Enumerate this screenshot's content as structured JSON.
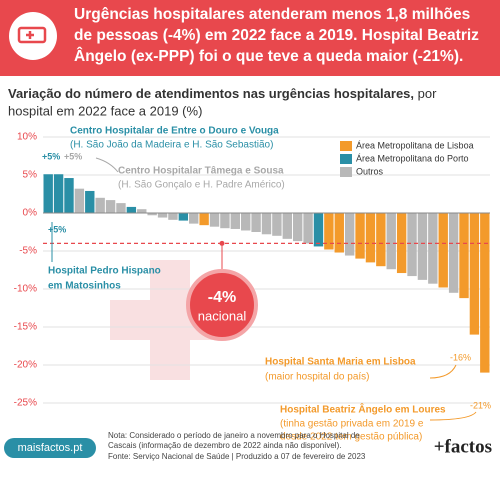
{
  "header": {
    "title_lines": [
      "Urgências hospitalares atenderam menos 1,8 milhões",
      "de pessoas (-4%) em 2022 face a 2019. Hospital Beatriz",
      "Ângelo (ex-PPP) foi o que teve a queda maior (-21%)."
    ]
  },
  "chart_data": {
    "type": "bar",
    "title": "Variação do número de atendimentos nas urgências hospitalares,",
    "title_rest": "por",
    "subtitle": "hospital em 2022 face a 2019 (%)",
    "categories": [
      null,
      null,
      null,
      null,
      null,
      null,
      null,
      null,
      null,
      null,
      null,
      null,
      null,
      null,
      null,
      null,
      null,
      null,
      null,
      null,
      null,
      null,
      null,
      null,
      null,
      null,
      null,
      null,
      null,
      null,
      null,
      null,
      null,
      null,
      null,
      null,
      null,
      null,
      null,
      null,
      null,
      null,
      null
    ],
    "series": [
      {
        "name": "Área Metropolitana de Lisboa",
        "color": "#f39a2b",
        "values": [
          null,
          null,
          null,
          null,
          null,
          null,
          null,
          null,
          null,
          null,
          null,
          null,
          null,
          null,
          null,
          -1.6,
          null,
          null,
          null,
          null,
          null,
          null,
          null,
          null,
          null,
          null,
          null,
          -4.8,
          -5.2,
          null,
          -6.0,
          -6.5,
          -7.0,
          null,
          -7.9,
          null,
          null,
          null,
          -9.8,
          null,
          -11.2,
          -16,
          -21
        ]
      },
      {
        "name": "Área Metropolitana do Porto",
        "color": "#2a8fa6",
        "values": [
          5.1,
          5.1,
          4.6,
          null,
          2.9,
          null,
          null,
          null,
          0.8,
          null,
          null,
          null,
          null,
          -1.0,
          null,
          null,
          null,
          null,
          null,
          null,
          null,
          null,
          null,
          null,
          null,
          null,
          -4.4,
          null,
          null,
          null,
          null,
          null,
          null,
          null,
          null,
          null,
          null,
          null,
          null,
          null,
          null,
          null,
          null
        ]
      },
      {
        "name": "Outros",
        "color": "#b8b8b8",
        "values": [
          null,
          null,
          null,
          3.2,
          null,
          2.0,
          1.7,
          1.3,
          null,
          0.5,
          -0.3,
          -0.6,
          -0.9,
          null,
          -1.4,
          null,
          -1.8,
          -2.0,
          -2.1,
          -2.3,
          -2.5,
          -2.8,
          -3.0,
          -3.4,
          -3.7,
          -4.0,
          null,
          null,
          null,
          -5.6,
          null,
          null,
          null,
          -7.4,
          null,
          -8.3,
          -8.8,
          -9.3,
          null,
          -10.5,
          null,
          null,
          null
        ]
      }
    ],
    "ylim": [
      -25,
      10
    ],
    "yticks": [
      {
        "value": 10,
        "label": "10%"
      },
      {
        "value": 5,
        "label": "5%"
      },
      {
        "value": 0,
        "label": "0%"
      },
      {
        "value": -5,
        "label": "-5%"
      },
      {
        "value": -10,
        "label": "-10%"
      },
      {
        "value": -15,
        "label": "-15%"
      },
      {
        "value": -20,
        "label": "-20%"
      },
      {
        "value": -25,
        "label": "-25%"
      }
    ],
    "grid": true,
    "reference": {
      "value": -4,
      "label": "-4%",
      "text": "nacional"
    },
    "annotations": [
      "Centro Hospitalar de Entre o Douro e Vouga",
      "(H. São João da Madeira e H. São Sebastião)",
      "+5%",
      "+5%",
      "Centro Hospitalar Tâmega e Sousa",
      "(H. São Gonçalo e H. Padre Américo)",
      "+5%",
      "Hospital Pedro Hispano",
      "em Matosinhos",
      "Hospital Santa Maria em Lisboa",
      "(maior hospital do país)",
      "-16%",
      "Hospital Beatriz Ângelo em Loures",
      "(tinha gestão privada em 2019 e",
      "desde 2022 tem gestão pública)",
      "-21%"
    ]
  },
  "footer": {
    "site": "maisfactos.pt",
    "note_lines": [
      "Nota: Considerado o período de janeiro a novembro para o Hospital de",
      "Cascais (informação de dezembro de 2022 ainda não disponível).",
      "Fonte: Serviço Nacional de Saúde | Produzido a 07 de fevereiro de 2023"
    ],
    "brand": "+factos"
  }
}
